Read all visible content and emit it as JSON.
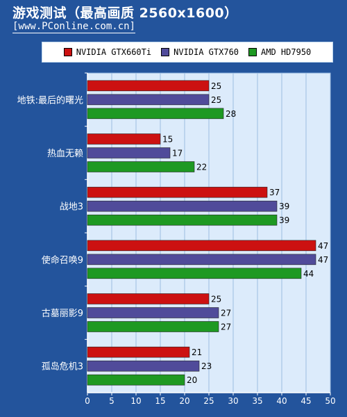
{
  "title": "游戏测试（最高画质 2560x1600）",
  "subtitle": "[www.PConline.com.cn]",
  "colors": {
    "NVIDIA GTX660Ti": "#cc1111",
    "NVIDIA GTX760": "#504b9a",
    "AMD HD7950": "#1e9922",
    "plot_bg": "#dcebfb",
    "page_bg": "#23549c"
  },
  "chart_data": {
    "type": "bar",
    "orientation": "horizontal",
    "categories": [
      "地铁:最后的曙光",
      "热血无赖",
      "战地3",
      "使命召唤9",
      "古墓丽影9",
      "孤岛危机3"
    ],
    "series": [
      {
        "name": "NVIDIA GTX660Ti",
        "values": [
          25,
          15,
          37,
          47,
          25,
          21
        ]
      },
      {
        "name": "NVIDIA GTX760",
        "values": [
          25,
          17,
          39,
          47,
          27,
          23
        ]
      },
      {
        "name": "AMD HD7950",
        "values": [
          28,
          22,
          39,
          44,
          27,
          20
        ]
      }
    ],
    "xlim": [
      0,
      50
    ],
    "xticks": [
      0,
      5,
      10,
      15,
      20,
      25,
      30,
      35,
      40,
      45,
      50
    ],
    "grid": true,
    "legend_position": "top",
    "data_labels": true,
    "xlabel": "",
    "ylabel": ""
  }
}
